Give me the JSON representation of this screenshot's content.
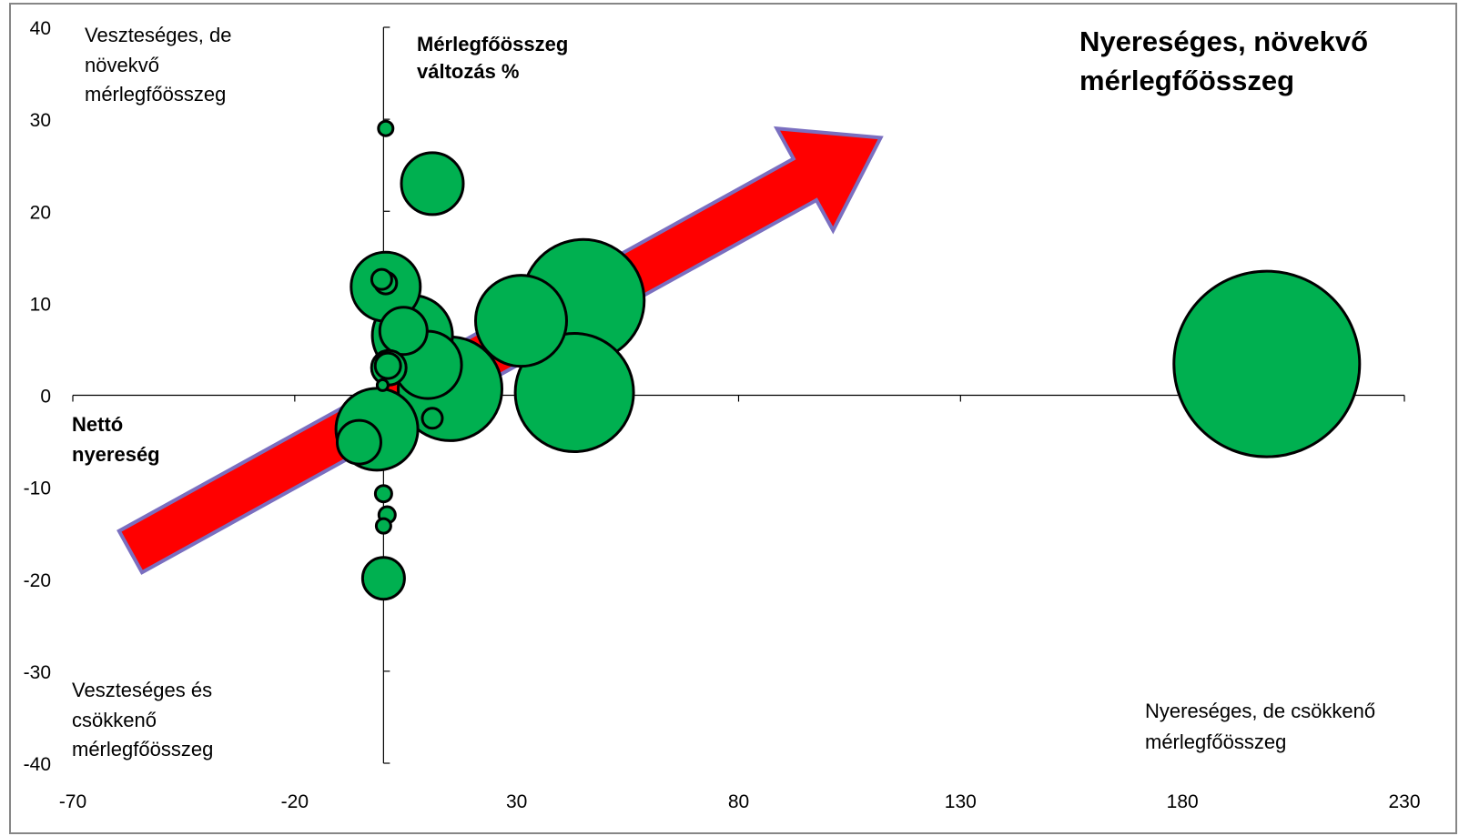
{
  "chart_data": {
    "type": "bubble",
    "x_ticks": [
      "-70",
      "-20",
      "30",
      "80",
      "130",
      "180",
      "230"
    ],
    "y_ticks": [
      "40",
      "30",
      "20",
      "10",
      "0",
      "-10",
      "-20",
      "-30",
      "-40"
    ],
    "xlim": [
      -70,
      230
    ],
    "ylim": [
      -40,
      40
    ],
    "y_axis_crosses_x_at": 0,
    "x_axis_title": [
      "Nettó",
      "nyereség"
    ],
    "y_axis_title": [
      "Mérlegfőösszeg",
      "változás %"
    ],
    "quadrant_labels": {
      "top_left": [
        "Veszteséges, de",
        "növekvő",
        "mérlegfőösszeg"
      ],
      "top_right": [
        "Nyereséges, növekvő",
        "mérlegfőösszeg"
      ],
      "bottom_left": [
        "Veszteséges és",
        "csökkenő",
        "mérlegfőösszeg"
      ],
      "bottom_right": [
        "Nyereséges, de csökkenő",
        "mérlegfőösszeg"
      ]
    },
    "bubble_color": "#00b050",
    "arrow_color": "#ff0000",
    "arrow_border_color": "#7a6fc0",
    "trend_arrow": {
      "from": [
        -57,
        -17
      ],
      "to": [
        112,
        28
      ]
    },
    "points": [
      {
        "x": 0.5,
        "y": 29,
        "size": 0.8
      },
      {
        "x": 11,
        "y": 23,
        "size": 3.4
      },
      {
        "x": 6.5,
        "y": 6.5,
        "size": 4.4
      },
      {
        "x": 0.5,
        "y": 11.8,
        "size": 3.8
      },
      {
        "x": 0.5,
        "y": 12.2,
        "size": 1.2
      },
      {
        "x": -0.4,
        "y": 12.6,
        "size": 1.1
      },
      {
        "x": 4.5,
        "y": 7,
        "size": 2.6
      },
      {
        "x": 10,
        "y": 3.3,
        "size": 3.7
      },
      {
        "x": 15,
        "y": 0.7,
        "size": 5.7
      },
      {
        "x": 45,
        "y": 10.3,
        "size": 6.7
      },
      {
        "x": 31,
        "y": 8.1,
        "size": 5.0
      },
      {
        "x": 43,
        "y": 0.3,
        "size": 6.5
      },
      {
        "x": 1.2,
        "y": 3.0,
        "size": 1.9
      },
      {
        "x": 1.0,
        "y": 3.2,
        "size": 1.4
      },
      {
        "x": -0.2,
        "y": 1.1,
        "size": 0.6
      },
      {
        "x": -1.5,
        "y": -3.7,
        "size": 4.5
      },
      {
        "x": 11,
        "y": -2.5,
        "size": 1.1
      },
      {
        "x": -5.5,
        "y": -5.1,
        "size": 2.4
      },
      {
        "x": 0,
        "y": -10.7,
        "size": 0.9
      },
      {
        "x": 0.8,
        "y": -13,
        "size": 0.9
      },
      {
        "x": 0,
        "y": -14.2,
        "size": 0.8
      },
      {
        "x": 0,
        "y": -19.9,
        "size": 2.3
      },
      {
        "x": 199,
        "y": 3.4,
        "size": 10.2
      }
    ]
  }
}
